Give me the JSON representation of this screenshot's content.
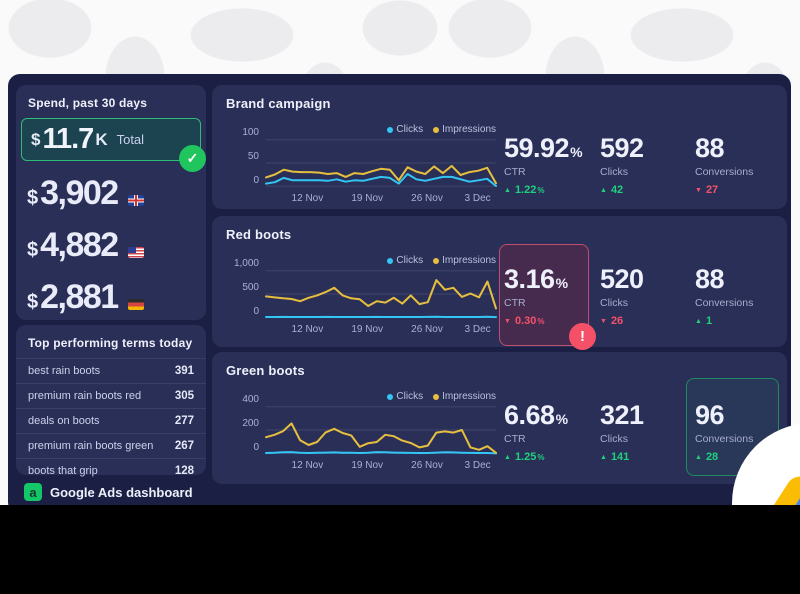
{
  "colors": {
    "page_bg": "#fafafb",
    "dashboard_bg": "#1b1f44",
    "card_bg": "#2a2f57",
    "accent_green": "#1fd07d",
    "accent_red": "#f45169",
    "gridline": "#3b4168",
    "series": {
      "Clicks": "#33c5f3",
      "Impressions": "#e7bf3e"
    }
  },
  "icons": {
    "check": "✓",
    "alert": "!",
    "logo_glyph": "a"
  },
  "sidebar": {
    "spend": {
      "title": "Spend, past 30 days",
      "total": {
        "currency": "$",
        "value": "11.7",
        "unit": "K",
        "label": "Total"
      },
      "rows": [
        {
          "currency": "$",
          "value": "3,902",
          "flag": "uk-flag"
        },
        {
          "currency": "$",
          "value": "4,882",
          "flag": "us-flag"
        },
        {
          "currency": "$",
          "value": "2,881",
          "flag": "de-flag"
        }
      ]
    },
    "terms": {
      "title": "Top performing terms today",
      "rows": [
        {
          "label": "best rain boots",
          "value": "391"
        },
        {
          "label": "premium rain boots red",
          "value": "305"
        },
        {
          "label": "deals on boots",
          "value": "277"
        },
        {
          "label": "premium rain boots green",
          "value": "267"
        },
        {
          "label": "boots that grip",
          "value": "128"
        }
      ]
    },
    "footer": {
      "label": "Google Ads dashboard"
    }
  },
  "legend": {
    "clicks": "Clicks",
    "impressions": "Impressions"
  },
  "campaigns": [
    {
      "title": "Brand campaign",
      "stats": [
        {
          "value": "59.92",
          "suffix": "%",
          "label": "CTR",
          "delta": "1.22",
          "delta_suffix": "%",
          "direction": "up"
        },
        {
          "value": "592",
          "label": "Clicks",
          "delta": "42",
          "direction": "up"
        },
        {
          "value": "88",
          "label": "Conversions",
          "delta": "27",
          "direction": "down"
        }
      ]
    },
    {
      "title": "Red boots",
      "stats": [
        {
          "value": "3.16",
          "suffix": "%",
          "label": "CTR",
          "delta": "0.30",
          "delta_suffix": "%",
          "direction": "down"
        },
        {
          "value": "520",
          "label": "Clicks",
          "delta": "26",
          "direction": "down"
        },
        {
          "value": "88",
          "label": "Conversions",
          "delta": "1",
          "direction": "up"
        }
      ]
    },
    {
      "title": "Green boots",
      "stats": [
        {
          "value": "6.68",
          "suffix": "%",
          "label": "CTR",
          "delta": "1.25",
          "delta_suffix": "%",
          "direction": "up"
        },
        {
          "value": "321",
          "label": "Clicks",
          "delta": "141",
          "direction": "up"
        },
        {
          "value": "96",
          "label": "Conversions",
          "delta": "28",
          "direction": "up"
        }
      ]
    }
  ],
  "chart_data": [
    {
      "type": "line",
      "title": "Brand campaign",
      "x_labels": [
        "12 Nov",
        "19 Nov",
        "26 Nov",
        "3 Dec"
      ],
      "yticks": [
        "100",
        "50",
        "0"
      ],
      "ylim": [
        0,
        100
      ],
      "grid": true,
      "legend_position": "top-right",
      "series": [
        {
          "name": "Clicks",
          "values": [
            7,
            10,
            19,
            14,
            14,
            14,
            14,
            13,
            16,
            11,
            14,
            13,
            17,
            21,
            19,
            7,
            27,
            16,
            13,
            17,
            21,
            21,
            16,
            11,
            14,
            17,
            2
          ]
        },
        {
          "name": "Impressions",
          "values": [
            20,
            26,
            36,
            32,
            31,
            31,
            30,
            27,
            29,
            21,
            29,
            27,
            33,
            38,
            36,
            14,
            41,
            32,
            27,
            43,
            29,
            44,
            25,
            31,
            34,
            40,
            8
          ]
        }
      ]
    },
    {
      "type": "line",
      "title": "Red boots",
      "x_labels": [
        "12 Nov",
        "19 Nov",
        "26 Nov",
        "3 Dec"
      ],
      "yticks": [
        "1,000",
        "500",
        "0"
      ],
      "ylim": [
        0,
        1000
      ],
      "grid": true,
      "legend_position": "top-right",
      "series": [
        {
          "name": "Clicks",
          "values": [
            20,
            20,
            22,
            20,
            21,
            20,
            20,
            22,
            20,
            20,
            21,
            20,
            20,
            22,
            20,
            20,
            21,
            20,
            20,
            22,
            25,
            20,
            20,
            21,
            20,
            20,
            25,
            18
          ]
        },
        {
          "name": "Impressions",
          "values": [
            450,
            430,
            410,
            395,
            350,
            420,
            470,
            540,
            630,
            470,
            410,
            390,
            250,
            350,
            320,
            420,
            300,
            470,
            290,
            330,
            790,
            590,
            630,
            440,
            510,
            430,
            760,
            200
          ]
        }
      ]
    },
    {
      "type": "line",
      "title": "Green boots",
      "x_labels": [
        "12 Nov",
        "19 Nov",
        "26 Nov",
        "3 Dec"
      ],
      "yticks": [
        "400",
        "200",
        "0"
      ],
      "ylim": [
        0,
        400
      ],
      "grid": true,
      "legend_position": "top-right",
      "series": [
        {
          "name": "Clicks",
          "values": [
            8,
            10,
            14,
            16,
            10,
            8,
            10,
            12,
            13,
            11,
            10,
            8,
            10,
            16,
            14,
            12,
            10,
            9,
            8,
            8,
            12,
            15,
            13,
            11,
            9,
            8,
            8,
            5
          ]
        },
        {
          "name": "Impressions",
          "values": [
            140,
            160,
            190,
            255,
            115,
            75,
            100,
            180,
            210,
            175,
            155,
            60,
            90,
            100,
            160,
            148,
            112,
            92,
            55,
            70,
            178,
            188,
            178,
            200,
            55,
            35,
            65,
            10
          ]
        }
      ]
    }
  ]
}
